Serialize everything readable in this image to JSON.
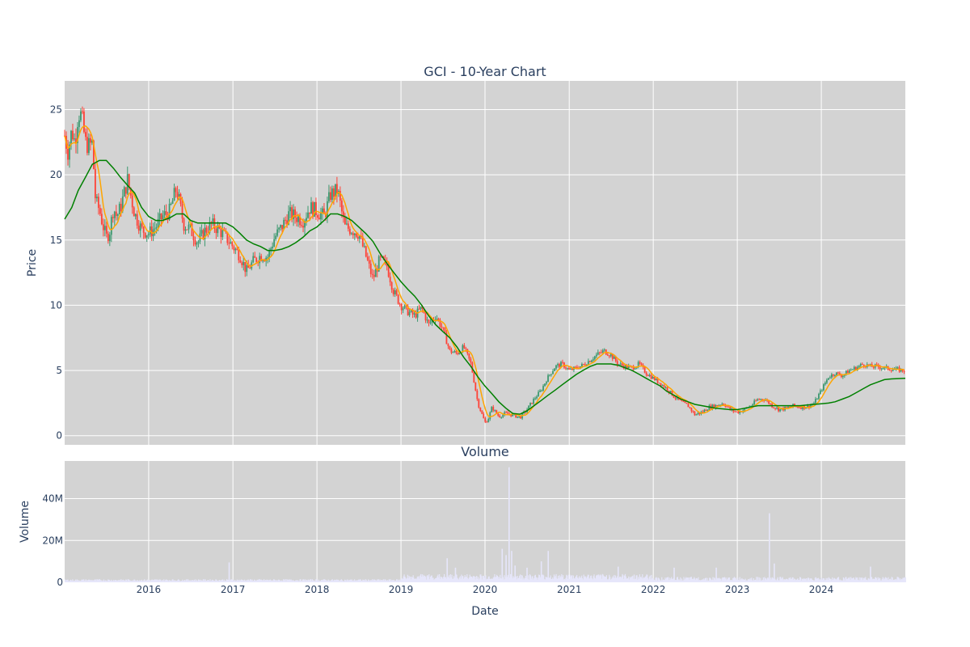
{
  "chart_data": [
    {
      "type": "candlestick",
      "title": "GCI - 10-Year Chart",
      "ylabel": "Price",
      "xlabel": "",
      "x_range": [
        "2015-01-01",
        "2024-12-31"
      ],
      "ylim": [
        -0.7,
        27.2
      ],
      "yticks": [
        0,
        5,
        10,
        15,
        20,
        25
      ],
      "xticks": [
        "2016",
        "2017",
        "2018",
        "2019",
        "2020",
        "2021",
        "2022",
        "2023",
        "2024"
      ],
      "grid": true,
      "colors": {
        "increasing": "#3d9970",
        "decreasing": "#ff4136",
        "ma_short": "#ffa500",
        "ma_long": "#008000",
        "background": "#d3d3d3",
        "grid": "#ffffff"
      },
      "price_points": [
        [
          "2015-01-01",
          23.0
        ],
        [
          "2015-01-15",
          21.8
        ],
        [
          "2015-02-01",
          23.4
        ],
        [
          "2015-02-15",
          22.5
        ],
        [
          "2015-03-01",
          24.8
        ],
        [
          "2015-03-15",
          24.5
        ],
        [
          "2015-04-01",
          22.5
        ],
        [
          "2015-04-15",
          22.2
        ],
        [
          "2015-05-01",
          22.4
        ],
        [
          "2015-05-15",
          18.0
        ],
        [
          "2015-06-01",
          17.3
        ],
        [
          "2015-06-15",
          16.2
        ],
        [
          "2015-07-01",
          15.2
        ],
        [
          "2015-07-15",
          15.6
        ],
        [
          "2015-08-01",
          17.5
        ],
        [
          "2015-08-15",
          16.8
        ],
        [
          "2015-09-01",
          17.5
        ],
        [
          "2015-10-01",
          19.6
        ],
        [
          "2015-11-01",
          17.0
        ],
        [
          "2015-12-01",
          15.8
        ],
        [
          "2016-01-01",
          15.5
        ],
        [
          "2016-02-01",
          16.0
        ],
        [
          "2016-03-01",
          16.8
        ],
        [
          "2016-04-01",
          17.2
        ],
        [
          "2016-05-01",
          19.0
        ],
        [
          "2016-06-01",
          16.2
        ],
        [
          "2016-07-01",
          15.8
        ],
        [
          "2016-08-01",
          14.8
        ],
        [
          "2016-09-01",
          15.7
        ],
        [
          "2016-10-01",
          16.2
        ],
        [
          "2016-11-01",
          15.8
        ],
        [
          "2016-12-01",
          15.2
        ],
        [
          "2017-01-01",
          14.5
        ],
        [
          "2017-02-01",
          13.8
        ],
        [
          "2017-03-01",
          12.6
        ],
        [
          "2017-04-01",
          13.4
        ],
        [
          "2017-05-01",
          13.8
        ],
        [
          "2017-06-01",
          13.7
        ],
        [
          "2017-07-01",
          15.2
        ],
        [
          "2017-08-01",
          16.0
        ],
        [
          "2017-09-01",
          17.0
        ],
        [
          "2017-10-01",
          16.8
        ],
        [
          "2017-11-01",
          16.5
        ],
        [
          "2017-12-01",
          17.5
        ],
        [
          "2018-01-01",
          17.2
        ],
        [
          "2018-02-01",
          16.8
        ],
        [
          "2018-03-01",
          18.5
        ],
        [
          "2018-04-01",
          18.8
        ],
        [
          "2018-05-01",
          16.0
        ],
        [
          "2018-06-01",
          15.8
        ],
        [
          "2018-07-01",
          15.5
        ],
        [
          "2018-08-01",
          13.8
        ],
        [
          "2018-09-01",
          12.0
        ],
        [
          "2018-10-01",
          13.5
        ],
        [
          "2018-11-01",
          13.0
        ],
        [
          "2018-12-01",
          11.0
        ],
        [
          "2019-01-01",
          10.0
        ],
        [
          "2019-02-01",
          9.5
        ],
        [
          "2019-03-01",
          9.2
        ],
        [
          "2019-04-01",
          9.8
        ],
        [
          "2019-05-01",
          8.5
        ],
        [
          "2019-06-01",
          9.2
        ],
        [
          "2019-07-01",
          8.2
        ],
        [
          "2019-08-01",
          6.5
        ],
        [
          "2019-09-01",
          6.3
        ],
        [
          "2019-10-01",
          6.8
        ],
        [
          "2019-11-01",
          5.5
        ],
        [
          "2019-12-01",
          2.5
        ],
        [
          "2020-01-01",
          1.0
        ],
        [
          "2020-01-15",
          1.3
        ],
        [
          "2020-02-01",
          2.2
        ],
        [
          "2020-02-15",
          1.8
        ],
        [
          "2020-03-01",
          1.5
        ],
        [
          "2020-04-01",
          1.7
        ],
        [
          "2020-05-01",
          1.6
        ],
        [
          "2020-06-01",
          1.4
        ],
        [
          "2020-07-01",
          2.0
        ],
        [
          "2020-08-01",
          2.8
        ],
        [
          "2020-09-01",
          3.5
        ],
        [
          "2020-10-01",
          4.5
        ],
        [
          "2020-11-01",
          5.3
        ],
        [
          "2020-12-01",
          5.5
        ],
        [
          "2021-01-01",
          5.0
        ],
        [
          "2021-02-01",
          5.2
        ],
        [
          "2021-03-01",
          5.4
        ],
        [
          "2021-04-01",
          5.8
        ],
        [
          "2021-05-01",
          6.2
        ],
        [
          "2021-06-01",
          6.5
        ],
        [
          "2021-07-01",
          6.2
        ],
        [
          "2021-08-01",
          5.5
        ],
        [
          "2021-09-01",
          5.3
        ],
        [
          "2021-10-01",
          5.2
        ],
        [
          "2021-11-01",
          5.5
        ],
        [
          "2021-12-01",
          4.8
        ],
        [
          "2022-01-01",
          4.4
        ],
        [
          "2022-02-01",
          4.0
        ],
        [
          "2022-03-01",
          3.6
        ],
        [
          "2022-04-01",
          3.0
        ],
        [
          "2022-05-01",
          2.6
        ],
        [
          "2022-06-01",
          2.3
        ],
        [
          "2022-07-01",
          1.6
        ],
        [
          "2022-08-01",
          1.8
        ],
        [
          "2022-09-01",
          2.2
        ],
        [
          "2022-10-01",
          2.3
        ],
        [
          "2022-11-01",
          2.5
        ],
        [
          "2022-12-01",
          2.0
        ],
        [
          "2023-01-01",
          1.8
        ],
        [
          "2023-02-01",
          2.0
        ],
        [
          "2023-03-01",
          2.3
        ],
        [
          "2023-04-01",
          2.8
        ],
        [
          "2023-05-01",
          2.8
        ],
        [
          "2023-06-01",
          2.3
        ],
        [
          "2023-07-01",
          2.0
        ],
        [
          "2023-08-01",
          2.1
        ],
        [
          "2023-09-01",
          2.3
        ],
        [
          "2023-10-01",
          2.2
        ],
        [
          "2023-11-01",
          2.2
        ],
        [
          "2023-12-01",
          2.5
        ],
        [
          "2024-01-01",
          3.5
        ],
        [
          "2024-02-01",
          4.5
        ],
        [
          "2024-03-01",
          4.8
        ],
        [
          "2024-04-01",
          4.6
        ],
        [
          "2024-05-01",
          5.0
        ],
        [
          "2024-06-01",
          5.2
        ],
        [
          "2024-07-01",
          5.5
        ],
        [
          "2024-08-01",
          5.3
        ],
        [
          "2024-09-01",
          5.3
        ],
        [
          "2024-10-01",
          5.2
        ],
        [
          "2024-11-01",
          5.1
        ],
        [
          "2024-12-31",
          5.0
        ]
      ],
      "ma_long_points": [
        [
          "2015-01-01",
          16.6
        ],
        [
          "2015-02-01",
          17.5
        ],
        [
          "2015-03-01",
          18.8
        ],
        [
          "2015-04-01",
          19.8
        ],
        [
          "2015-05-01",
          20.8
        ],
        [
          "2015-06-01",
          21.1
        ],
        [
          "2015-07-01",
          21.1
        ],
        [
          "2015-08-01",
          20.5
        ],
        [
          "2015-09-01",
          19.8
        ],
        [
          "2015-10-01",
          19.2
        ],
        [
          "2015-11-01",
          18.6
        ],
        [
          "2015-12-01",
          17.5
        ],
        [
          "2016-01-01",
          16.8
        ],
        [
          "2016-02-01",
          16.5
        ],
        [
          "2016-03-01",
          16.5
        ],
        [
          "2016-04-01",
          16.7
        ],
        [
          "2016-05-01",
          17.0
        ],
        [
          "2016-06-01",
          17.0
        ],
        [
          "2016-07-01",
          16.5
        ],
        [
          "2016-08-01",
          16.3
        ],
        [
          "2016-10-01",
          16.3
        ],
        [
          "2016-12-01",
          16.3
        ],
        [
          "2017-01-01",
          16.0
        ],
        [
          "2017-02-01",
          15.5
        ],
        [
          "2017-03-01",
          15.0
        ],
        [
          "2017-04-01",
          14.7
        ],
        [
          "2017-05-01",
          14.5
        ],
        [
          "2017-06-01",
          14.2
        ],
        [
          "2017-07-01",
          14.2
        ],
        [
          "2017-08-01",
          14.3
        ],
        [
          "2017-09-01",
          14.5
        ],
        [
          "2017-10-01",
          14.8
        ],
        [
          "2017-11-01",
          15.2
        ],
        [
          "2017-12-01",
          15.7
        ],
        [
          "2018-01-01",
          16.0
        ],
        [
          "2018-02-01",
          16.5
        ],
        [
          "2018-03-01",
          17.0
        ],
        [
          "2018-04-01",
          17.0
        ],
        [
          "2018-05-01",
          16.8
        ],
        [
          "2018-06-01",
          16.5
        ],
        [
          "2018-07-01",
          16.0
        ],
        [
          "2018-08-01",
          15.5
        ],
        [
          "2018-09-01",
          14.9
        ],
        [
          "2018-10-01",
          14.0
        ],
        [
          "2018-11-01",
          13.2
        ],
        [
          "2018-12-01",
          12.5
        ],
        [
          "2019-01-01",
          11.8
        ],
        [
          "2019-02-01",
          11.2
        ],
        [
          "2019-03-01",
          10.7
        ],
        [
          "2019-04-01",
          10.0
        ],
        [
          "2019-05-01",
          9.2
        ],
        [
          "2019-06-01",
          8.5
        ],
        [
          "2019-07-01",
          8.0
        ],
        [
          "2019-08-01",
          7.5
        ],
        [
          "2019-09-01",
          6.8
        ],
        [
          "2019-10-01",
          6.0
        ],
        [
          "2019-11-01",
          5.3
        ],
        [
          "2019-12-01",
          4.5
        ],
        [
          "2020-01-01",
          3.8
        ],
        [
          "2020-02-01",
          3.2
        ],
        [
          "2020-03-01",
          2.6
        ],
        [
          "2020-04-01",
          2.1
        ],
        [
          "2020-05-01",
          1.7
        ],
        [
          "2020-06-01",
          1.65
        ],
        [
          "2020-07-01",
          1.9
        ],
        [
          "2020-08-01",
          2.3
        ],
        [
          "2020-09-01",
          2.7
        ],
        [
          "2020-10-01",
          3.1
        ],
        [
          "2020-11-01",
          3.5
        ],
        [
          "2020-12-01",
          3.9
        ],
        [
          "2021-01-01",
          4.3
        ],
        [
          "2021-02-01",
          4.7
        ],
        [
          "2021-03-01",
          5.0
        ],
        [
          "2021-04-01",
          5.3
        ],
        [
          "2021-05-01",
          5.5
        ],
        [
          "2021-06-01",
          5.5
        ],
        [
          "2021-07-01",
          5.5
        ],
        [
          "2021-08-01",
          5.4
        ],
        [
          "2021-09-01",
          5.2
        ],
        [
          "2021-10-01",
          5.0
        ],
        [
          "2021-11-01",
          4.7
        ],
        [
          "2021-12-01",
          4.4
        ],
        [
          "2022-01-01",
          4.1
        ],
        [
          "2022-02-01",
          3.8
        ],
        [
          "2022-03-01",
          3.4
        ],
        [
          "2022-04-01",
          3.1
        ],
        [
          "2022-05-01",
          2.8
        ],
        [
          "2022-06-01",
          2.6
        ],
        [
          "2022-07-01",
          2.4
        ],
        [
          "2022-08-01",
          2.3
        ],
        [
          "2022-09-01",
          2.2
        ],
        [
          "2022-10-01",
          2.1
        ],
        [
          "2022-11-01",
          2.05
        ],
        [
          "2022-12-01",
          2.0
        ],
        [
          "2023-01-01",
          2.0
        ],
        [
          "2023-02-01",
          2.1
        ],
        [
          "2023-03-01",
          2.2
        ],
        [
          "2023-04-01",
          2.3
        ],
        [
          "2023-05-01",
          2.3
        ],
        [
          "2023-06-01",
          2.3
        ],
        [
          "2023-07-01",
          2.3
        ],
        [
          "2023-08-01",
          2.3
        ],
        [
          "2023-09-01",
          2.3
        ],
        [
          "2023-10-01",
          2.3
        ],
        [
          "2023-11-01",
          2.35
        ],
        [
          "2023-12-01",
          2.4
        ],
        [
          "2024-01-01",
          2.45
        ],
        [
          "2024-02-01",
          2.5
        ],
        [
          "2024-03-01",
          2.6
        ],
        [
          "2024-04-01",
          2.8
        ],
        [
          "2024-05-01",
          3.0
        ],
        [
          "2024-06-01",
          3.3
        ],
        [
          "2024-07-01",
          3.6
        ],
        [
          "2024-08-01",
          3.9
        ],
        [
          "2024-09-01",
          4.1
        ],
        [
          "2024-10-01",
          4.3
        ],
        [
          "2024-11-01",
          4.35
        ],
        [
          "2024-12-31",
          4.4
        ]
      ]
    },
    {
      "type": "bar",
      "title": "Volume",
      "ylabel": "Volume",
      "xlabel": "Date",
      "x_range": [
        "2015-01-01",
        "2024-12-31"
      ],
      "ylim": [
        0,
        58000000
      ],
      "yticks": [
        0,
        20000000,
        40000000
      ],
      "ytick_labels": [
        "0",
        "20M",
        "40M"
      ],
      "xticks": [
        "2016",
        "2017",
        "2018",
        "2019",
        "2020",
        "2021",
        "2022",
        "2023",
        "2024"
      ],
      "grid": true,
      "colors": {
        "bar": "#e6e6fa",
        "background": "#d3d3d3",
        "grid": "#ffffff"
      },
      "spikes": [
        [
          "2016-12-15",
          9500000
        ],
        [
          "2019-07-20",
          11500000
        ],
        [
          "2019-08-25",
          7000000
        ],
        [
          "2020-03-15",
          16000000
        ],
        [
          "2020-04-01",
          13000000
        ],
        [
          "2020-04-14",
          55000000
        ],
        [
          "2020-04-25",
          15000000
        ],
        [
          "2020-05-10",
          8000000
        ],
        [
          "2020-07-01",
          7000000
        ],
        [
          "2020-09-01",
          10000000
        ],
        [
          "2020-10-01",
          15000000
        ],
        [
          "2021-08-01",
          7500000
        ],
        [
          "2022-04-01",
          7000000
        ],
        [
          "2022-10-01",
          7000000
        ],
        [
          "2023-05-20",
          33000000
        ],
        [
          "2023-06-10",
          9000000
        ],
        [
          "2024-08-01",
          7500000
        ]
      ]
    }
  ]
}
